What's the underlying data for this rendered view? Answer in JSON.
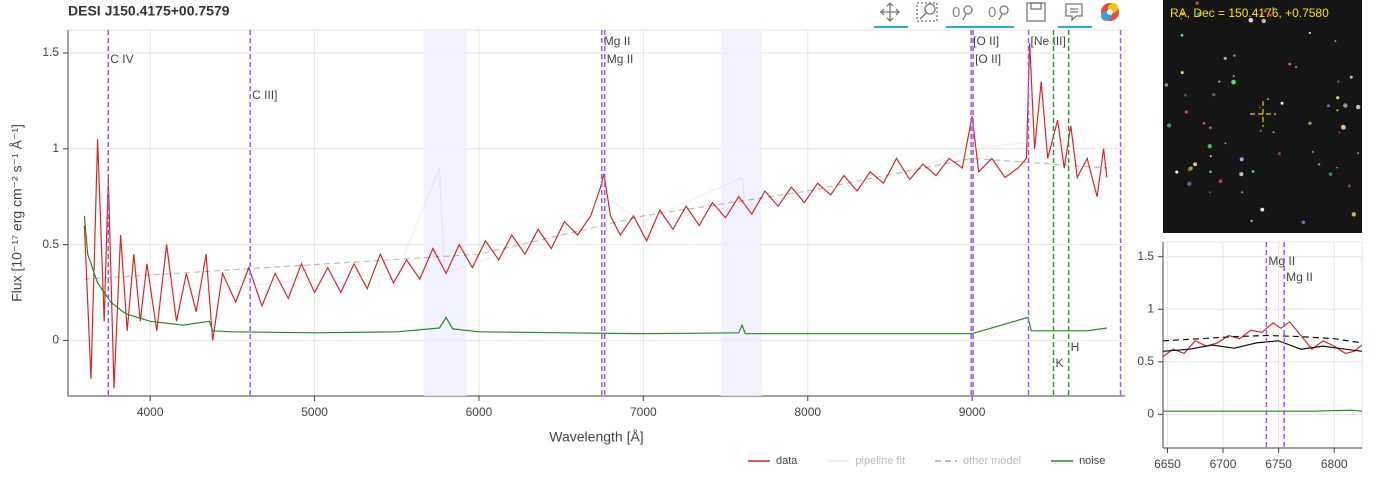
{
  "chart_data": [
    {
      "type": "line",
      "title": "DESI J150.4175+00.7579",
      "xlabel": "Wavelength [Å]",
      "ylabel": "Flux [10⁻¹⁷ erg cm⁻² s⁻¹ Å⁻¹]",
      "xlim": [
        3500,
        9930
      ],
      "ylim": [
        -0.29,
        1.62
      ],
      "xticks": [
        4000,
        5000,
        6000,
        7000,
        8000,
        9000
      ],
      "yticks": [
        0,
        0.5,
        1,
        1.5
      ],
      "grid": true,
      "bands": [
        [
          5663,
          5925
        ],
        [
          7470,
          7720
        ]
      ],
      "vlines": [
        {
          "x": 3745,
          "label": "C IV",
          "color": "#a05ae8"
        },
        {
          "x": 4608,
          "label": "C III]",
          "color": "#a05ae8"
        },
        {
          "x": 6747,
          "label": "Mg II",
          "color": "#a05ae8"
        },
        {
          "x": 6765,
          "label": "Mg II",
          "color": "#a05ae8"
        },
        {
          "x": 8994,
          "label": "[O II]",
          "color": "#a05ae8"
        },
        {
          "x": 9006,
          "label": "[O II]",
          "color": "#a05ae8"
        },
        {
          "x": 9343,
          "label": "[Ne III]",
          "color": "#a05ae8"
        },
        {
          "x": 9495,
          "label": "K",
          "color": "#2e9a2e"
        },
        {
          "x": 9587,
          "label": "H",
          "color": "#2e9a2e"
        },
        {
          "x": 9903,
          "color": "#a05ae8"
        }
      ],
      "series": [
        {
          "name": "data",
          "color": "#d62728",
          "muted": false,
          "x": [
            3600,
            3640,
            3680,
            3720,
            3745,
            3780,
            3820,
            3860,
            3900,
            3940,
            3980,
            4040,
            4100,
            4160,
            4220,
            4280,
            4340,
            4380,
            4440,
            4520,
            4600,
            4680,
            4760,
            4840,
            4920,
            5000,
            5080,
            5160,
            5240,
            5320,
            5400,
            5480,
            5560,
            5640,
            5720,
            5800,
            5880,
            5960,
            6040,
            6120,
            6200,
            6280,
            6360,
            6440,
            6520,
            6600,
            6680,
            6740,
            6760,
            6800,
            6860,
            6940,
            7020,
            7100,
            7180,
            7260,
            7340,
            7420,
            7500,
            7580,
            7660,
            7740,
            7820,
            7900,
            7980,
            8060,
            8140,
            8220,
            8300,
            8380,
            8460,
            8540,
            8620,
            8700,
            8780,
            8860,
            8940,
            9000,
            9040,
            9120,
            9200,
            9280,
            9330,
            9350,
            9380,
            9420,
            9460,
            9520,
            9560,
            9600,
            9640,
            9700,
            9760,
            9800,
            9820
          ],
          "values": [
            0.6,
            -0.2,
            1.05,
            0.1,
            0.85,
            -0.25,
            0.55,
            0.05,
            0.45,
            0.1,
            0.4,
            0.05,
            0.5,
            0.1,
            0.35,
            0.15,
            0.45,
            0.0,
            0.35,
            0.2,
            0.38,
            0.18,
            0.35,
            0.22,
            0.4,
            0.25,
            0.38,
            0.25,
            0.4,
            0.27,
            0.45,
            0.3,
            0.42,
            0.32,
            0.48,
            0.35,
            0.5,
            0.38,
            0.52,
            0.42,
            0.55,
            0.45,
            0.58,
            0.48,
            0.62,
            0.55,
            0.65,
            0.8,
            0.87,
            0.65,
            0.55,
            0.65,
            0.52,
            0.68,
            0.58,
            0.7,
            0.6,
            0.72,
            0.64,
            0.75,
            0.66,
            0.78,
            0.7,
            0.8,
            0.72,
            0.82,
            0.76,
            0.86,
            0.78,
            0.88,
            0.82,
            0.95,
            0.84,
            0.92,
            0.86,
            0.95,
            0.9,
            1.17,
            0.88,
            0.95,
            0.85,
            0.9,
            0.95,
            1.55,
            1.0,
            1.35,
            0.95,
            1.15,
            0.9,
            1.12,
            0.85,
            0.95,
            0.75,
            1.0,
            0.85
          ]
        },
        {
          "name": "pipeline fit",
          "color": "#c8c8c8",
          "muted": true,
          "x": [
            3600,
            4500,
            5500,
            5760,
            5790,
            6500,
            6760,
            7000,
            7600,
            7620,
            8500,
            9000,
            9500,
            9820
          ],
          "values": [
            0.3,
            0.28,
            0.35,
            0.9,
            0.35,
            0.55,
            0.75,
            0.62,
            0.85,
            0.7,
            0.85,
            1.0,
            1.05,
            0.85
          ]
        },
        {
          "name": "other model",
          "color": "#000000",
          "dashed": true,
          "muted": true,
          "x": [
            3600,
            6000,
            7000,
            8000,
            9000,
            9820
          ],
          "values": [
            0.32,
            0.45,
            0.65,
            0.78,
            0.95,
            0.9
          ]
        },
        {
          "name": "noise",
          "color": "#228b22",
          "muted": false,
          "x": [
            3600,
            3620,
            3680,
            3760,
            3850,
            4000,
            4200,
            4360,
            4380,
            4500,
            5000,
            5500,
            5760,
            5800,
            5840,
            6000,
            6500,
            7000,
            7580,
            7600,
            7620,
            8000,
            8500,
            9000,
            9340,
            9360,
            9500,
            9700,
            9820
          ],
          "values": [
            0.65,
            0.45,
            0.3,
            0.2,
            0.14,
            0.1,
            0.08,
            0.1,
            0.05,
            0.045,
            0.04,
            0.045,
            0.065,
            0.12,
            0.06,
            0.045,
            0.04,
            0.035,
            0.04,
            0.08,
            0.035,
            0.035,
            0.035,
            0.035,
            0.12,
            0.05,
            0.05,
            0.05,
            0.065
          ]
        }
      ]
    },
    {
      "type": "line",
      "xlim": [
        6646,
        6825
      ],
      "ylim": [
        -0.32,
        1.64
      ],
      "xticks": [
        6650,
        6700,
        6750,
        6800
      ],
      "yticks": [
        0,
        0.5,
        1,
        1.5
      ],
      "grid": true,
      "vlines": [
        {
          "x": 6739,
          "label": "Mg II",
          "color": "#a05ae8"
        },
        {
          "x": 6755,
          "label": "Mg II",
          "color": "#a05ae8"
        }
      ],
      "series": [
        {
          "name": "data",
          "color": "#d62728",
          "x": [
            6646,
            6655,
            6665,
            6675,
            6685,
            6695,
            6705,
            6715,
            6725,
            6735,
            6745,
            6752,
            6760,
            6770,
            6780,
            6790,
            6800,
            6810,
            6818,
            6825
          ],
          "values": [
            0.55,
            0.62,
            0.58,
            0.7,
            0.65,
            0.68,
            0.75,
            0.72,
            0.8,
            0.78,
            0.87,
            0.82,
            0.88,
            0.75,
            0.62,
            0.7,
            0.65,
            0.58,
            0.6,
            0.66
          ]
        },
        {
          "name": "pipeline fit",
          "color": "#111111",
          "x": [
            6646,
            6670,
            6690,
            6710,
            6730,
            6750,
            6770,
            6790,
            6810,
            6825
          ],
          "values": [
            0.6,
            0.62,
            0.66,
            0.63,
            0.68,
            0.7,
            0.62,
            0.65,
            0.62,
            0.6
          ]
        },
        {
          "name": "other model",
          "color": "#111111",
          "dashed": true,
          "x": [
            6646,
            6680,
            6710,
            6740,
            6770,
            6800,
            6825
          ],
          "values": [
            0.7,
            0.72,
            0.74,
            0.75,
            0.74,
            0.72,
            0.68
          ]
        },
        {
          "name": "noise",
          "color": "#228b22",
          "x": [
            6646,
            6700,
            6780,
            6815,
            6825
          ],
          "values": [
            0.03,
            0.03,
            0.03,
            0.04,
            0.03
          ]
        }
      ]
    }
  ],
  "image": {
    "caption": "RA, Dec = 150.4176, +0.7580"
  }
}
